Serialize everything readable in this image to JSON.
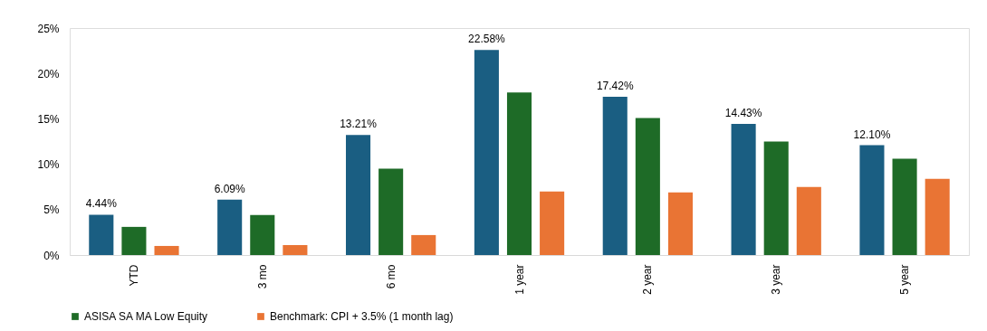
{
  "chart_data": {
    "type": "bar",
    "categories": [
      "YTD",
      "3 mo",
      "6 mo",
      "1 year",
      "2 year",
      "3 year",
      "5 year"
    ],
    "series": [
      {
        "color": "#1a5e82",
        "values": [
          4.44,
          6.09,
          13.21,
          22.58,
          17.42,
          14.43,
          12.1
        ],
        "value_labels": [
          "4.44%",
          "6.09%",
          "13.21%",
          "22.58%",
          "17.42%",
          "14.43%",
          "12.10%"
        ]
      },
      {
        "name": "ASISA SA MA Low Equity",
        "color": "#1e6b27",
        "values": [
          3.1,
          4.4,
          9.5,
          17.9,
          15.1,
          12.5,
          10.6
        ]
      },
      {
        "name": "Benchmark: CPI + 3.5% (1 month lag)",
        "color": "#e97434",
        "values": [
          1.0,
          1.1,
          2.2,
          7.0,
          6.9,
          7.5,
          8.4
        ]
      }
    ],
    "ylim": [
      0,
      25
    ],
    "yticks": [
      {
        "value": 0,
        "label": "0%"
      },
      {
        "value": 5,
        "label": "5%"
      },
      {
        "value": 10,
        "label": "10%"
      },
      {
        "value": 15,
        "label": "15%"
      },
      {
        "value": 20,
        "label": "20%"
      },
      {
        "value": 25,
        "label": "25%"
      }
    ],
    "grid": false,
    "legend": "bottom"
  }
}
